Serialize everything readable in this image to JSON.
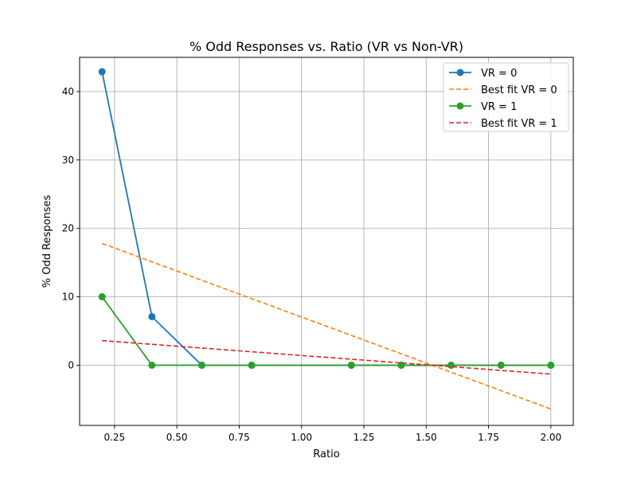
{
  "chart_data": {
    "type": "line",
    "title": "% Odd Responses vs. Ratio (VR vs Non-VR)",
    "xlabel": "Ratio",
    "ylabel": "% Odd Responses",
    "xlim": [
      0.11,
      2.09
    ],
    "ylim": [
      -8.8,
      45.0
    ],
    "xticks": [
      0.25,
      0.5,
      0.75,
      1.0,
      1.25,
      1.5,
      1.75,
      2.0
    ],
    "xtick_labels": [
      "0.25",
      "0.50",
      "0.75",
      "1.00",
      "1.25",
      "1.50",
      "1.75",
      "2.00"
    ],
    "yticks": [
      0,
      10,
      20,
      30,
      40
    ],
    "ytick_labels": [
      "0",
      "10",
      "20",
      "30",
      "40"
    ],
    "grid": true,
    "legend_position": "top-right",
    "series": [
      {
        "name": "VR = 0",
        "style": "solid-marker",
        "color": "#1f77b4",
        "x": [
          0.2,
          0.4,
          0.6,
          0.8,
          1.2,
          1.4,
          1.6,
          1.8,
          2.0
        ],
        "y": [
          42.9,
          7.1,
          0,
          0,
          0,
          0,
          0,
          0,
          0
        ]
      },
      {
        "name": "Best fit VR = 0",
        "style": "dashed",
        "color": "#ff7f0e",
        "x": [
          0.2,
          2.0
        ],
        "y": [
          17.8,
          -6.4
        ]
      },
      {
        "name": "VR = 1",
        "style": "solid-marker",
        "color": "#2ca02c",
        "x": [
          0.2,
          0.4,
          0.6,
          0.8,
          1.2,
          1.4,
          1.6,
          1.8,
          2.0
        ],
        "y": [
          10,
          0,
          0,
          0,
          0,
          0,
          0,
          0,
          0
        ]
      },
      {
        "name": "Best fit VR = 1",
        "style": "dashed",
        "color": "#d62728",
        "x": [
          0.2,
          2.0
        ],
        "y": [
          3.6,
          -1.3
        ]
      }
    ]
  }
}
